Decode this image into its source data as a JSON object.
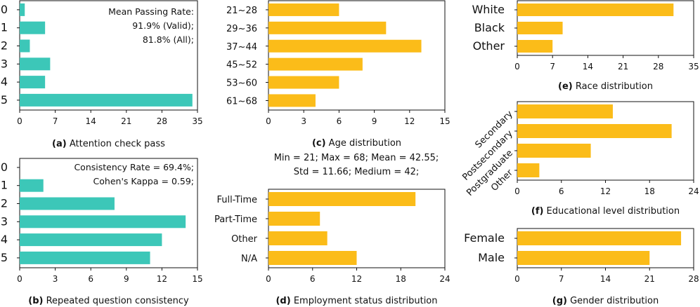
{
  "chart_data": [
    {
      "id": "a",
      "type": "bar",
      "orientation": "horizontal",
      "caption_label": "(a)",
      "caption_text": "Attention check pass",
      "categories": [
        "0",
        "1",
        "2",
        "3",
        "4",
        "5"
      ],
      "values": [
        1,
        5,
        2,
        6,
        5,
        34
      ],
      "xlim": [
        0,
        35
      ],
      "xticks": [
        0,
        7,
        14,
        21,
        28,
        35
      ],
      "color": "#3cc7b8",
      "annotations": [
        "Mean Passing Rate:",
        "91.9% (Valid);",
        "81.8% (All);"
      ]
    },
    {
      "id": "b",
      "type": "bar",
      "orientation": "horizontal",
      "caption_label": "(b)",
      "caption_text": "Repeated question consistency",
      "categories": [
        "0",
        "1",
        "2",
        "3",
        "4",
        "5"
      ],
      "values": [
        0,
        2,
        8,
        14,
        12,
        11
      ],
      "xlim": [
        0,
        15
      ],
      "xticks": [
        0,
        3,
        6,
        9,
        12,
        15
      ],
      "color": "#3cc7b8",
      "annotations": [
        "Consistency Rate = 69.4%;",
        "Cohen's Kappa = 0.59;"
      ]
    },
    {
      "id": "c",
      "type": "bar",
      "orientation": "horizontal",
      "caption_label": "(c)",
      "caption_text": "Age distribution",
      "categories": [
        "21~28",
        "29~36",
        "37~44",
        "45~52",
        "53~60",
        "61~68"
      ],
      "values": [
        6,
        10,
        13,
        8,
        6,
        4
      ],
      "xlim": [
        0,
        15
      ],
      "xticks": [
        0,
        3,
        6,
        9,
        12,
        15
      ],
      "color": "#fbbc19",
      "stats_lines": [
        "Min = 21; Max = 68; Mean = 42.55;",
        "Std = 11.66; Medium = 42;"
      ]
    },
    {
      "id": "d",
      "type": "bar",
      "orientation": "horizontal",
      "caption_label": "(d)",
      "caption_text": "Employment status distribution",
      "categories": [
        "Full-Time",
        "Part-Time",
        "Other",
        "N/A"
      ],
      "values": [
        20,
        7,
        8,
        12
      ],
      "xlim": [
        0,
        24
      ],
      "xticks": [
        0,
        6,
        12,
        18,
        24
      ],
      "color": "#fbbc19"
    },
    {
      "id": "e",
      "type": "bar",
      "orientation": "horizontal",
      "caption_label": "(e)",
      "caption_text": "Race distribution",
      "categories": [
        "White",
        "Black",
        "Other"
      ],
      "values": [
        31,
        9,
        7
      ],
      "xlim": [
        0,
        35
      ],
      "xticks": [
        0,
        7,
        14,
        21,
        28,
        35
      ],
      "color": "#fbbc19"
    },
    {
      "id": "f",
      "type": "bar",
      "orientation": "horizontal",
      "caption_label": "(f)",
      "caption_text": "Educational level distribution",
      "categories": [
        "Secondary",
        "Postsecondary",
        "Postgraduate",
        "Other"
      ],
      "values": [
        13,
        21,
        10,
        3
      ],
      "xlim": [
        0,
        24
      ],
      "xticks": [
        0,
        6,
        12,
        18,
        24
      ],
      "color": "#fbbc19"
    },
    {
      "id": "g",
      "type": "bar",
      "orientation": "horizontal",
      "caption_label": "(g)",
      "caption_text": "Gender distribution",
      "categories": [
        "Female",
        "Male"
      ],
      "values": [
        26,
        21
      ],
      "xlim": [
        0,
        28
      ],
      "xticks": [
        0,
        7,
        14,
        21,
        28
      ],
      "color": "#fbbc19"
    }
  ]
}
